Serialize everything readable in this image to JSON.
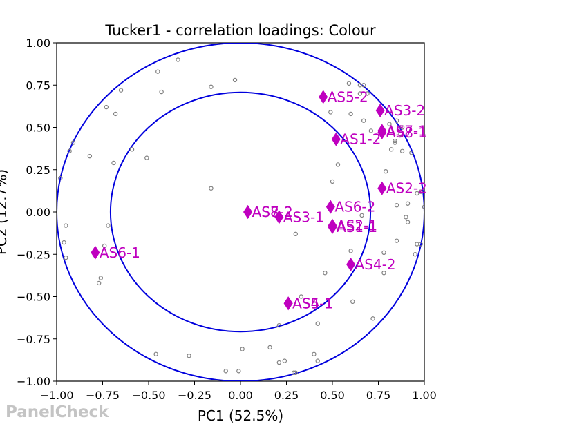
{
  "chart_data": {
    "type": "scatter",
    "title": "Tucker1 - correlation loadings: Colour",
    "xlabel": "PC1 (52.5%)",
    "ylabel": "PC2 (12.7%)",
    "xlim": [
      -1.0,
      1.0
    ],
    "ylim": [
      -1.0,
      1.0
    ],
    "x_ticks": [
      "−1.00",
      "−0.75",
      "−0.50",
      "−0.25",
      "0.00",
      "0.25",
      "0.50",
      "0.75",
      "1.00"
    ],
    "y_ticks": [
      "1.00",
      "0.75",
      "0.50",
      "0.25",
      "0.00",
      "−0.25",
      "−0.50",
      "−0.75",
      "−1.00"
    ],
    "circles": [
      1.0,
      0.7071
    ],
    "colors": {
      "circle": "#0000dd",
      "marker": "#bf00bf",
      "point": "#808080"
    },
    "markers": [
      {
        "label": "AS5-2",
        "x": 0.45,
        "y": 0.68
      },
      {
        "label": "AS3-2",
        "x": 0.76,
        "y": 0.6
      },
      {
        "label": "AS7-1",
        "x": 0.77,
        "y": 0.48
      },
      {
        "label": "AS8-1",
        "x": 0.77,
        "y": 0.47
      },
      {
        "label": "AS1-2",
        "x": 0.52,
        "y": 0.43
      },
      {
        "label": "AS2-2",
        "x": 0.77,
        "y": 0.14
      },
      {
        "label": "AS6-2",
        "x": 0.49,
        "y": 0.03
      },
      {
        "label": "AS7-2",
        "x": 0.04,
        "y": 0.0
      },
      {
        "label": "AS8-2",
        "x": 0.04,
        "y": 0.0
      },
      {
        "label": "AS3-1",
        "x": 0.21,
        "y": -0.03
      },
      {
        "label": "AS2-1",
        "x": 0.5,
        "y": -0.08
      },
      {
        "label": "AS1-1",
        "x": 0.5,
        "y": -0.09
      },
      {
        "label": "AS6-1",
        "x": -0.79,
        "y": -0.24
      },
      {
        "label": "AS4-2",
        "x": 0.6,
        "y": -0.31
      },
      {
        "label": "AS4-1",
        "x": 0.26,
        "y": -0.54
      },
      {
        "label": "AS5-1",
        "x": 0.26,
        "y": -0.54
      }
    ],
    "points": [
      [
        -0.45,
        0.83
      ],
      [
        -0.34,
        0.9
      ],
      [
        -0.65,
        0.72
      ],
      [
        -0.43,
        0.71
      ],
      [
        -0.16,
        0.74
      ],
      [
        -0.03,
        0.78
      ],
      [
        -0.73,
        0.62
      ],
      [
        -0.68,
        0.58
      ],
      [
        -0.91,
        0.41
      ],
      [
        -0.93,
        0.36
      ],
      [
        -0.82,
        0.33
      ],
      [
        -0.59,
        0.37
      ],
      [
        -0.51,
        0.32
      ],
      [
        -0.69,
        0.29
      ],
      [
        -0.98,
        0.2
      ],
      [
        -0.16,
        0.14
      ],
      [
        -0.95,
        -0.08
      ],
      [
        -0.72,
        -0.08
      ],
      [
        -0.96,
        -0.18
      ],
      [
        -0.74,
        -0.2
      ],
      [
        -0.95,
        -0.27
      ],
      [
        -0.76,
        -0.39
      ],
      [
        -0.77,
        -0.42
      ],
      [
        -0.46,
        -0.84
      ],
      [
        -0.28,
        -0.85
      ],
      [
        0.01,
        -0.81
      ],
      [
        -0.08,
        -0.94
      ],
      [
        -0.01,
        -0.94
      ],
      [
        0.16,
        -0.8
      ],
      [
        0.21,
        -0.89
      ],
      [
        0.24,
        -0.88
      ],
      [
        0.29,
        -0.95
      ],
      [
        0.3,
        -0.95
      ],
      [
        0.4,
        -0.84
      ],
      [
        0.42,
        -0.88
      ],
      [
        0.21,
        -0.67
      ],
      [
        0.33,
        -0.5
      ],
      [
        0.42,
        -0.66
      ],
      [
        0.61,
        -0.53
      ],
      [
        0.72,
        -0.63
      ],
      [
        0.46,
        -0.36
      ],
      [
        0.3,
        -0.13
      ],
      [
        0.6,
        -0.23
      ],
      [
        0.78,
        -0.36
      ],
      [
        0.78,
        -0.24
      ],
      [
        0.85,
        -0.17
      ],
      [
        0.9,
        -0.03
      ],
      [
        0.91,
        -0.06
      ],
      [
        0.96,
        -0.19
      ],
      [
        0.95,
        -0.25
      ],
      [
        0.98,
        -0.19
      ],
      [
        0.66,
        -0.02
      ],
      [
        0.5,
        0.18
      ],
      [
        0.53,
        0.28
      ],
      [
        0.79,
        0.24
      ],
      [
        0.85,
        0.04
      ],
      [
        0.91,
        0.05
      ],
      [
        0.96,
        0.11
      ],
      [
        0.98,
        0.12
      ],
      [
        1.0,
        0.03
      ],
      [
        0.82,
        0.37
      ],
      [
        0.84,
        0.41
      ],
      [
        0.88,
        0.36
      ],
      [
        0.93,
        0.35
      ],
      [
        0.49,
        0.59
      ],
      [
        0.6,
        0.58
      ],
      [
        0.67,
        0.54
      ],
      [
        0.71,
        0.48
      ],
      [
        0.81,
        0.52
      ],
      [
        0.85,
        0.54
      ],
      [
        0.88,
        0.5
      ],
      [
        0.87,
        0.46
      ],
      [
        0.84,
        0.42
      ],
      [
        0.59,
        0.76
      ],
      [
        0.65,
        0.75
      ],
      [
        0.67,
        0.75
      ],
      [
        0.65,
        0.7
      ],
      [
        0.69,
        0.7
      ]
    ]
  },
  "watermark": "PanelCheck"
}
